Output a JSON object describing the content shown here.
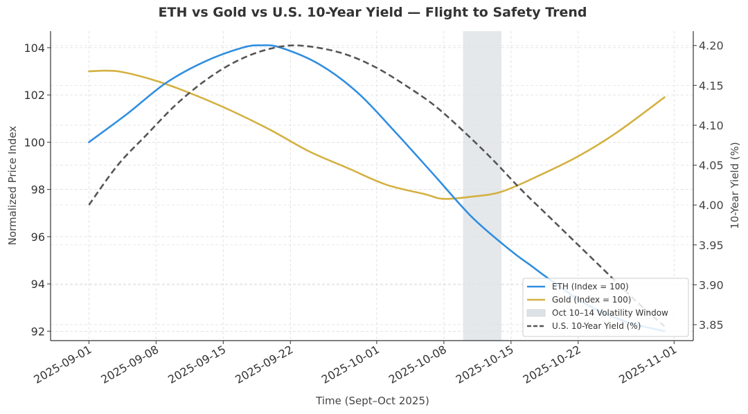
{
  "chart_data": {
    "type": "line",
    "title": "ETH vs Gold vs U.S. 10-Year Yield — Flight to Safety Trend",
    "xlabel": "Time (Sept–Oct 2025)",
    "ylabel": "Normalized Price Index",
    "y2label": "10-Year Yield (%)",
    "xlim": [
      "2025-08-28",
      "2025-11-03"
    ],
    "ylim": [
      91.6,
      104.7
    ],
    "y2lim": [
      3.83,
      4.218
    ],
    "x_ticks": [
      "2025-09-01",
      "2025-09-08",
      "2025-09-15",
      "2025-09-22",
      "2025-10-01",
      "2025-10-08",
      "2025-10-15",
      "2025-10-22",
      "2025-11-01"
    ],
    "y_ticks": [
      92,
      94,
      96,
      98,
      100,
      102,
      104
    ],
    "y2_ticks": [
      3.85,
      3.9,
      3.95,
      4.0,
      4.05,
      4.1,
      4.15,
      4.2
    ],
    "grid": true,
    "legend_position": "lower-right",
    "highlight": {
      "label": "Oct 10–14 Volatility Window",
      "start": "2025-10-10",
      "end": "2025-10-14",
      "color": "#dde2e6"
    },
    "series": [
      {
        "name": "ETH (Index = 100)",
        "axis": "left",
        "color": "#2f8ee0",
        "style": "solid",
        "x": [
          "2025-09-01",
          "2025-09-05",
          "2025-09-09",
          "2025-09-13",
          "2025-09-17",
          "2025-09-19",
          "2025-09-21",
          "2025-09-25",
          "2025-09-29",
          "2025-10-03",
          "2025-10-07",
          "2025-10-11",
          "2025-10-15",
          "2025-10-17",
          "2025-10-19",
          "2025-10-23",
          "2025-10-27",
          "2025-10-31"
        ],
        "values": [
          100.0,
          101.2,
          102.5,
          103.4,
          104.0,
          104.1,
          104.0,
          103.3,
          102.1,
          100.4,
          98.6,
          96.8,
          95.4,
          94.8,
          94.2,
          93.1,
          92.4,
          92.0
        ]
      },
      {
        "name": "Gold (Index = 100)",
        "axis": "left",
        "color": "#d4b040",
        "style": "solid",
        "x": [
          "2025-09-01",
          "2025-09-04",
          "2025-09-08",
          "2025-09-12",
          "2025-09-16",
          "2025-09-20",
          "2025-09-24",
          "2025-09-28",
          "2025-10-02",
          "2025-10-06",
          "2025-10-08",
          "2025-10-11",
          "2025-10-14",
          "2025-10-18",
          "2025-10-22",
          "2025-10-26",
          "2025-10-31"
        ],
        "values": [
          103.0,
          103.0,
          102.6,
          102.0,
          101.3,
          100.5,
          99.6,
          98.9,
          98.2,
          97.8,
          97.6,
          97.7,
          97.9,
          98.6,
          99.4,
          100.4,
          101.9
        ]
      },
      {
        "name": "U.S. 10-Year Yield (%)",
        "axis": "right",
        "color": "#555555",
        "style": "dashed",
        "x": [
          "2025-09-01",
          "2025-09-04",
          "2025-09-07",
          "2025-09-10",
          "2025-09-13",
          "2025-09-16",
          "2025-09-19",
          "2025-09-22",
          "2025-09-25",
          "2025-09-28",
          "2025-10-01",
          "2025-10-04",
          "2025-10-07",
          "2025-10-10",
          "2025-10-13",
          "2025-10-16",
          "2025-10-19",
          "2025-10-22",
          "2025-10-25",
          "2025-10-28",
          "2025-10-31"
        ],
        "values": [
          4.0,
          4.05,
          4.088,
          4.125,
          4.155,
          4.178,
          4.193,
          4.2,
          4.197,
          4.188,
          4.172,
          4.15,
          4.125,
          4.093,
          4.058,
          4.02,
          3.985,
          3.95,
          3.915,
          3.88,
          3.848
        ]
      }
    ]
  }
}
